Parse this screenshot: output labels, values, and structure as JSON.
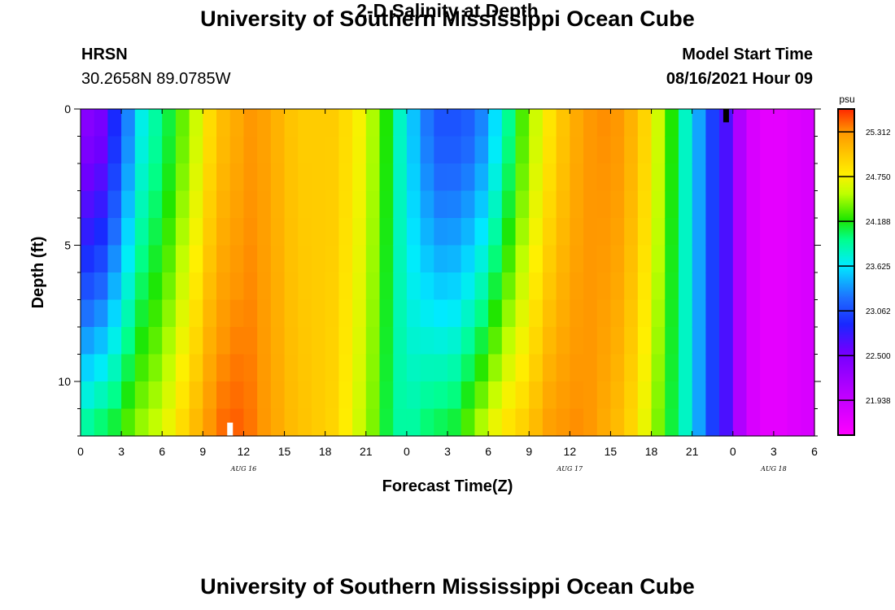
{
  "header": {
    "title": "University of Southern Mississippi Ocean Cube",
    "station": "HRSN",
    "coords": "30.2658N  89.0785W",
    "subtitle": "2-D Salinity at Depth",
    "model_start_label": "Model Start Time",
    "model_start_value": "08/16/2021 Hour 09"
  },
  "footer": {
    "title": "University of Southern Mississippi Ocean Cube"
  },
  "chart_data": {
    "type": "heatmap",
    "title": "2-D Salinity at Depth",
    "xlabel": "Forecast Time(Z)",
    "ylabel": "Depth (ft)",
    "x_range_hours": [
      0,
      54
    ],
    "x_tick_labels": [
      "0",
      "3",
      "6",
      "9",
      "12",
      "15",
      "18",
      "21",
      "0",
      "3",
      "6",
      "9",
      "12",
      "15",
      "18",
      "21",
      "0",
      "3",
      "6"
    ],
    "date_labels": [
      {
        "hour": 12,
        "label": "AUG 16"
      },
      {
        "hour": 36,
        "label": "AUG 17"
      },
      {
        "hour": 51,
        "label": "AUG 18"
      }
    ],
    "y_range_ft": [
      0,
      12
    ],
    "y_tick_labels": [
      {
        "value": 0,
        "label": "0"
      },
      {
        "value": 5,
        "label": "5"
      },
      {
        "value": 10,
        "label": "10"
      }
    ],
    "time_steps": 54,
    "depth_levels": 12,
    "units": "psu",
    "colorbar_labels": [
      "25.312",
      "24.750",
      "24.188",
      "23.625",
      "23.062",
      "22.500",
      "21.938"
    ],
    "colorbar_range": [
      21.5,
      25.6
    ],
    "markers": [
      {
        "hour": 11,
        "depth_ft": 11.75,
        "color": "#ffffff"
      },
      {
        "hour": 47.5,
        "depth_ft": 0.25,
        "color": "#000000"
      }
    ],
    "surface_salinity_psu": [
      22.4,
      22.5,
      22.9,
      23.3,
      23.7,
      23.9,
      24.1,
      24.35,
      24.6,
      24.9,
      25.1,
      25.2,
      25.3,
      25.25,
      25.15,
      25.05,
      25.0,
      25.0,
      25.0,
      24.9,
      24.75,
      24.5,
      24.2,
      23.8,
      23.5,
      23.25,
      23.1,
      23.1,
      23.15,
      23.3,
      23.6,
      23.95,
      24.3,
      24.6,
      24.85,
      25.05,
      25.2,
      25.3,
      25.33,
      25.3,
      25.15,
      24.95,
      24.6,
      24.2,
      23.8,
      23.4,
      23.0,
      22.7,
      22.1,
      21.8,
      21.7,
      21.7,
      21.75,
      21.8
    ],
    "bottom_salinity_psu": [
      23.9,
      24.0,
      24.1,
      24.3,
      24.45,
      24.55,
      24.7,
      24.9,
      25.1,
      25.3,
      25.42,
      25.45,
      25.4,
      25.3,
      25.2,
      25.1,
      25.05,
      25.0,
      24.95,
      24.8,
      24.6,
      24.4,
      24.1,
      23.9,
      23.9,
      24.0,
      24.05,
      24.1,
      24.3,
      24.5,
      24.7,
      24.85,
      24.95,
      25.1,
      25.25,
      25.3,
      25.33,
      25.3,
      25.2,
      25.1,
      24.95,
      24.7,
      24.4,
      24.1,
      23.8,
      23.4,
      23.0,
      22.7,
      22.1,
      21.8,
      21.7,
      21.7,
      21.75,
      21.8
    ]
  }
}
